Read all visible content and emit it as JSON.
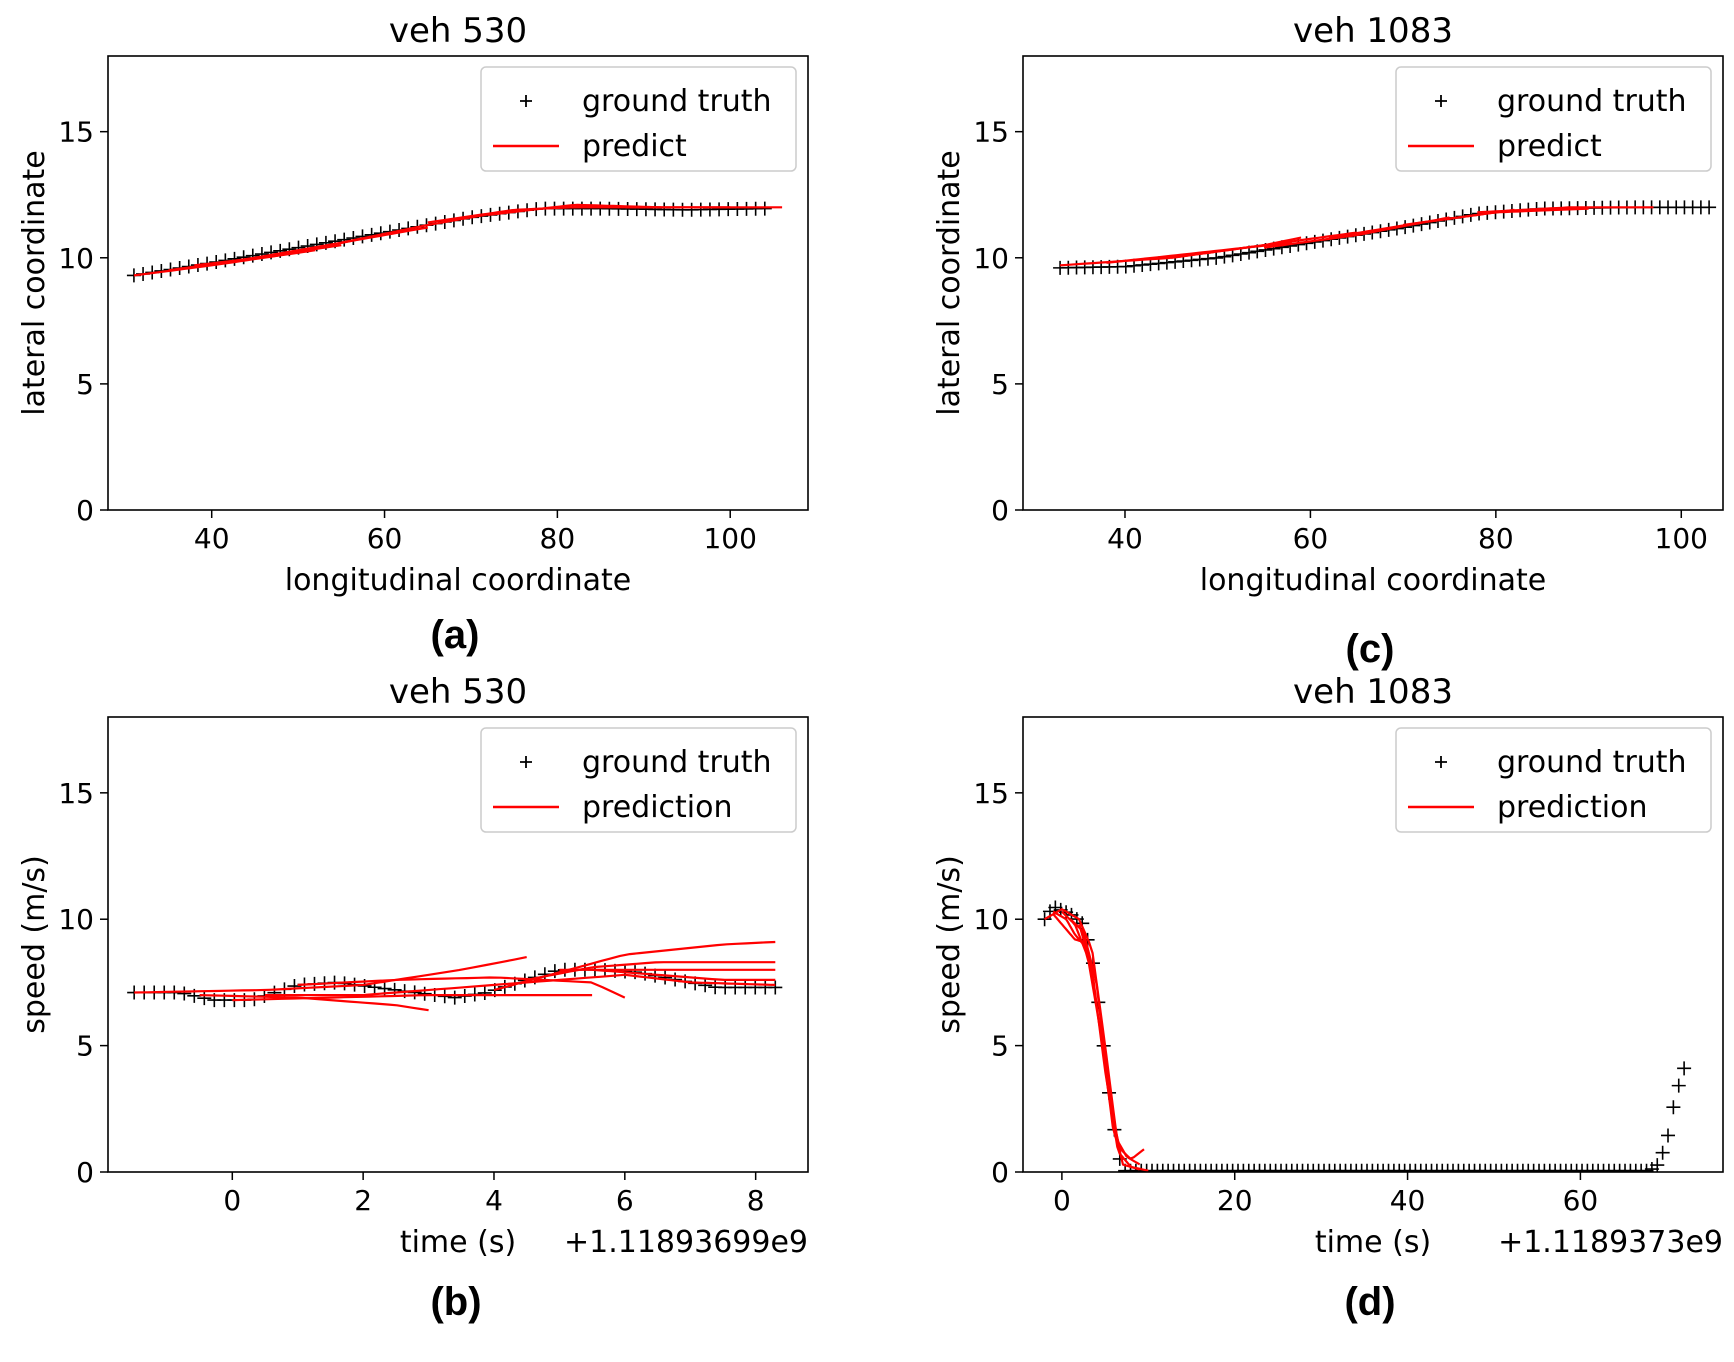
{
  "colors": {
    "ground_truth": "#000000",
    "prediction": "#ff0000",
    "axes": "#000000",
    "legend_border": "#cccccc"
  },
  "captions": [
    "(a)",
    "(b)",
    "(c)",
    "(d)"
  ],
  "chart_data": [
    {
      "id": "a",
      "type": "line",
      "title": "veh 530",
      "xlabel": "longitudinal coordinate",
      "ylabel": "lateral coordinate",
      "xlim": [
        28,
        109
      ],
      "ylim": [
        0,
        18
      ],
      "xticks": [
        40,
        60,
        80,
        100
      ],
      "xtick_labels": [
        "40",
        "60",
        "80",
        "100"
      ],
      "yticks": [
        0,
        5,
        10,
        15
      ],
      "ytick_labels": [
        "0",
        "5",
        "10",
        "15"
      ],
      "offset_text": "",
      "legend": {
        "position": "top-right",
        "entries": [
          "ground truth",
          "predict"
        ]
      },
      "ground_truth": {
        "points": [
          [
            31,
            9.3
          ],
          [
            40,
            9.8
          ],
          [
            50,
            10.4
          ],
          [
            60,
            11.0
          ],
          [
            70,
            11.6
          ],
          [
            78,
            11.95
          ],
          [
            85,
            11.95
          ],
          [
            95,
            11.9
          ],
          [
            104,
            11.95
          ]
        ],
        "count": 70
      },
      "predictions": [
        [
          [
            31,
            9.3
          ],
          [
            40,
            9.7
          ],
          [
            52,
            10.3
          ]
        ],
        [
          [
            35,
            9.5
          ],
          [
            45,
            10.0
          ],
          [
            55,
            10.5
          ]
        ],
        [
          [
            38,
            9.7
          ],
          [
            48,
            10.1
          ],
          [
            58,
            10.8
          ]
        ],
        [
          [
            45,
            10.0
          ],
          [
            55,
            10.6
          ],
          [
            65,
            11.2
          ]
        ],
        [
          [
            55,
            10.6
          ],
          [
            65,
            11.3
          ],
          [
            75,
            11.9
          ]
        ],
        [
          [
            65,
            11.4
          ],
          [
            75,
            11.9
          ],
          [
            85,
            12.05
          ]
        ],
        [
          [
            72,
            11.7
          ],
          [
            82,
            12.1
          ],
          [
            92,
            12.0
          ]
        ],
        [
          [
            80,
            12.0
          ],
          [
            90,
            12.0
          ],
          [
            100,
            12.0
          ]
        ],
        [
          [
            88,
            12.0
          ],
          [
            98,
            12.0
          ],
          [
            106,
            12.0
          ]
        ]
      ]
    },
    {
      "id": "b",
      "type": "line",
      "title": "veh 530",
      "xlabel": "time (s)",
      "ylabel": "speed (m/s)",
      "xlim": [
        -1.9,
        8.8
      ],
      "ylim": [
        0,
        18
      ],
      "xticks": [
        0,
        2,
        4,
        6,
        8
      ],
      "xtick_labels": [
        "0",
        "2",
        "4",
        "6",
        "8"
      ],
      "yticks": [
        0,
        5,
        10,
        15
      ],
      "ytick_labels": [
        "0",
        "5",
        "10",
        "15"
      ],
      "offset_text": "+1.11893699e9",
      "legend": {
        "position": "top-right",
        "entries": [
          "ground truth",
          "prediction"
        ]
      },
      "ground_truth": {
        "points": [
          [
            -1.5,
            7.1
          ],
          [
            -0.8,
            7.1
          ],
          [
            -0.3,
            6.8
          ],
          [
            0.3,
            6.8
          ],
          [
            1.0,
            7.4
          ],
          [
            1.6,
            7.5
          ],
          [
            2.2,
            7.3
          ],
          [
            2.8,
            7.1
          ],
          [
            3.4,
            6.9
          ],
          [
            3.9,
            7.1
          ],
          [
            4.5,
            7.6
          ],
          [
            5.0,
            8.0
          ],
          [
            5.6,
            8.0
          ],
          [
            6.2,
            7.9
          ],
          [
            6.8,
            7.6
          ],
          [
            7.4,
            7.3
          ],
          [
            8.3,
            7.3
          ]
        ],
        "count": 65
      },
      "predictions": [
        [
          [
            -1.5,
            7.1
          ],
          [
            0.5,
            7.2
          ],
          [
            2.0,
            7.4
          ],
          [
            3.5,
            8.0
          ],
          [
            4.5,
            8.5
          ]
        ],
        [
          [
            -0.5,
            7.0
          ],
          [
            1.0,
            6.9
          ],
          [
            2.5,
            6.6
          ],
          [
            3.0,
            6.4
          ]
        ],
        [
          [
            0.0,
            6.8
          ],
          [
            1.5,
            6.9
          ],
          [
            3.0,
            7.0
          ],
          [
            4.5,
            7.0
          ],
          [
            5.5,
            7.0
          ]
        ],
        [
          [
            0.5,
            7.0
          ],
          [
            2.0,
            7.0
          ],
          [
            3.5,
            7.3
          ],
          [
            5.0,
            7.6
          ],
          [
            6.0,
            7.8
          ]
        ],
        [
          [
            1.0,
            7.4
          ],
          [
            2.5,
            7.6
          ],
          [
            4.0,
            7.7
          ],
          [
            5.5,
            7.5
          ],
          [
            6.0,
            6.9
          ]
        ],
        [
          [
            4.0,
            7.2
          ],
          [
            5.0,
            7.9
          ],
          [
            6.0,
            8.6
          ],
          [
            7.5,
            9.0
          ],
          [
            8.3,
            9.1
          ]
        ],
        [
          [
            4.5,
            7.6
          ],
          [
            5.5,
            8.1
          ],
          [
            6.5,
            8.3
          ],
          [
            8.3,
            8.3
          ]
        ],
        [
          [
            5.0,
            8.0
          ],
          [
            6.0,
            8.0
          ],
          [
            7.0,
            8.0
          ],
          [
            8.3,
            8.0
          ]
        ],
        [
          [
            5.5,
            8.0
          ],
          [
            6.5,
            7.8
          ],
          [
            7.5,
            7.6
          ],
          [
            8.3,
            7.6
          ]
        ],
        [
          [
            6.0,
            7.8
          ],
          [
            7.0,
            7.5
          ],
          [
            8.3,
            7.4
          ]
        ]
      ]
    },
    {
      "id": "c",
      "type": "line",
      "title": "veh 1083",
      "xlabel": "longitudinal coordinate",
      "ylabel": "lateral coordinate",
      "xlim": [
        29,
        104.5
      ],
      "ylim": [
        0,
        18
      ],
      "xticks": [
        40,
        60,
        80,
        100
      ],
      "xtick_labels": [
        "40",
        "60",
        "80",
        "100"
      ],
      "yticks": [
        0,
        5,
        10,
        15
      ],
      "ytick_labels": [
        "0",
        "5",
        "10",
        "15"
      ],
      "offset_text": "",
      "legend": {
        "position": "top-right",
        "entries": [
          "ground truth",
          "predict"
        ]
      },
      "ground_truth": {
        "points": [
          [
            33,
            9.6
          ],
          [
            40,
            9.65
          ],
          [
            50,
            10.0
          ],
          [
            60,
            10.6
          ],
          [
            70,
            11.2
          ],
          [
            78,
            11.75
          ],
          [
            85,
            11.95
          ],
          [
            95,
            12.0
          ],
          [
            103,
            12.0
          ]
        ],
        "count": 80
      },
      "predictions": [
        [
          [
            33,
            9.7
          ],
          [
            45,
            10.0
          ],
          [
            55,
            10.5
          ],
          [
            59,
            10.8
          ]
        ],
        [
          [
            38,
            9.8
          ],
          [
            48,
            10.2
          ],
          [
            58,
            10.6
          ]
        ],
        [
          [
            45,
            10.0
          ],
          [
            55,
            10.5
          ],
          [
            65,
            11.0
          ]
        ],
        [
          [
            55,
            10.4
          ],
          [
            65,
            10.9
          ],
          [
            75,
            11.6
          ]
        ],
        [
          [
            62,
            10.8
          ],
          [
            72,
            11.4
          ],
          [
            82,
            11.9
          ]
        ],
        [
          [
            70,
            11.3
          ],
          [
            80,
            11.8
          ],
          [
            90,
            11.95
          ]
        ],
        [
          [
            78,
            11.8
          ],
          [
            88,
            12.0
          ],
          [
            97,
            12.0
          ]
        ]
      ]
    },
    {
      "id": "d",
      "type": "line",
      "title": "veh 1083",
      "xlabel": "time (s)",
      "ylabel": "speed (m/s)",
      "xlim": [
        -4.5,
        76.5
      ],
      "ylim": [
        0,
        18
      ],
      "xticks": [
        0,
        20,
        40,
        60
      ],
      "xtick_labels": [
        "0",
        "20",
        "40",
        "60"
      ],
      "yticks": [
        0,
        5,
        10,
        15
      ],
      "ytick_labels": [
        "0",
        "5",
        "10",
        "15"
      ],
      "offset_text": "+1.1189373e9",
      "legend": {
        "position": "top-right",
        "entries": [
          "ground truth",
          "prediction"
        ]
      },
      "ground_truth": {
        "points": [
          [
            -2,
            10.0
          ],
          [
            -1,
            10.5
          ],
          [
            1,
            10.2
          ],
          [
            2.5,
            9.8
          ],
          [
            3.5,
            8.5
          ],
          [
            4.5,
            6.0
          ],
          [
            5.5,
            3.0
          ],
          [
            6.5,
            0.7
          ],
          [
            7.2,
            0.05
          ],
          [
            20,
            0.05
          ],
          [
            40,
            0.05
          ],
          [
            60,
            0.05
          ],
          [
            68,
            0.05
          ],
          [
            69,
            0.3
          ],
          [
            70,
            1.2
          ],
          [
            71,
            3.0
          ],
          [
            72,
            4.1
          ]
        ],
        "count": 120
      },
      "predictions": [
        [
          [
            -2,
            10.0
          ],
          [
            0,
            10.4
          ],
          [
            2,
            10.0
          ],
          [
            3.5,
            8.8
          ],
          [
            5,
            5.0
          ],
          [
            6.5,
            1.0
          ],
          [
            8,
            0.5
          ],
          [
            9.5,
            0.9
          ]
        ],
        [
          [
            -1,
            10.3
          ],
          [
            0.5,
            10.0
          ],
          [
            1.5,
            9.4
          ],
          [
            2.5,
            9.0
          ]
        ],
        [
          [
            -1,
            10.2
          ],
          [
            0.5,
            9.6
          ],
          [
            1.5,
            9.2
          ],
          [
            2.5,
            9.1
          ]
        ],
        [
          [
            0,
            10.3
          ],
          [
            1.5,
            9.8
          ],
          [
            3,
            8.5
          ],
          [
            4.5,
            5.5
          ],
          [
            6,
            1.5
          ],
          [
            7.5,
            0.6
          ],
          [
            9,
            0.3
          ]
        ],
        [
          [
            1,
            10.0
          ],
          [
            2.5,
            9.5
          ],
          [
            4,
            7.5
          ],
          [
            5.5,
            3.0
          ],
          [
            7,
            0.3
          ],
          [
            9,
            0.1
          ]
        ],
        [
          [
            2,
            9.8
          ],
          [
            3.5,
            8.0
          ],
          [
            5,
            4.0
          ],
          [
            6.5,
            0.8
          ],
          [
            8,
            0.2
          ],
          [
            10,
            0.05
          ]
        ]
      ]
    }
  ]
}
